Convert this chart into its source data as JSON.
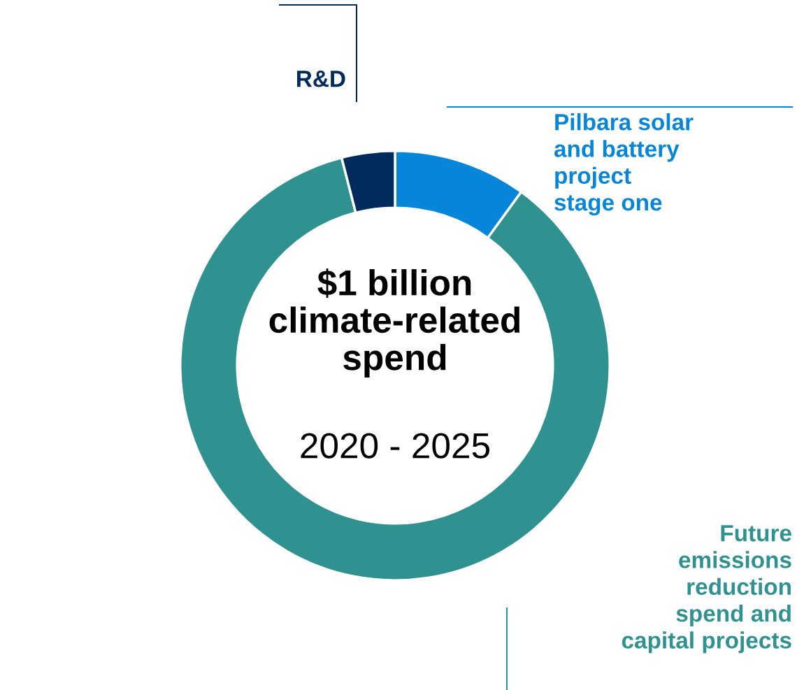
{
  "chart_data": {
    "type": "donut",
    "title": "$1 billion\nclimate-related\nspend",
    "subtitle": "2020 - 2025",
    "categories": [
      "Pilbara solar\nand battery\nproject\nstage one",
      "Future\nemissions\nreduction\nspend and\ncapital projects",
      "R&D"
    ],
    "values": [
      10,
      86,
      4
    ],
    "colors": [
      "#0785d9",
      "#309191",
      "#002b5c"
    ]
  }
}
